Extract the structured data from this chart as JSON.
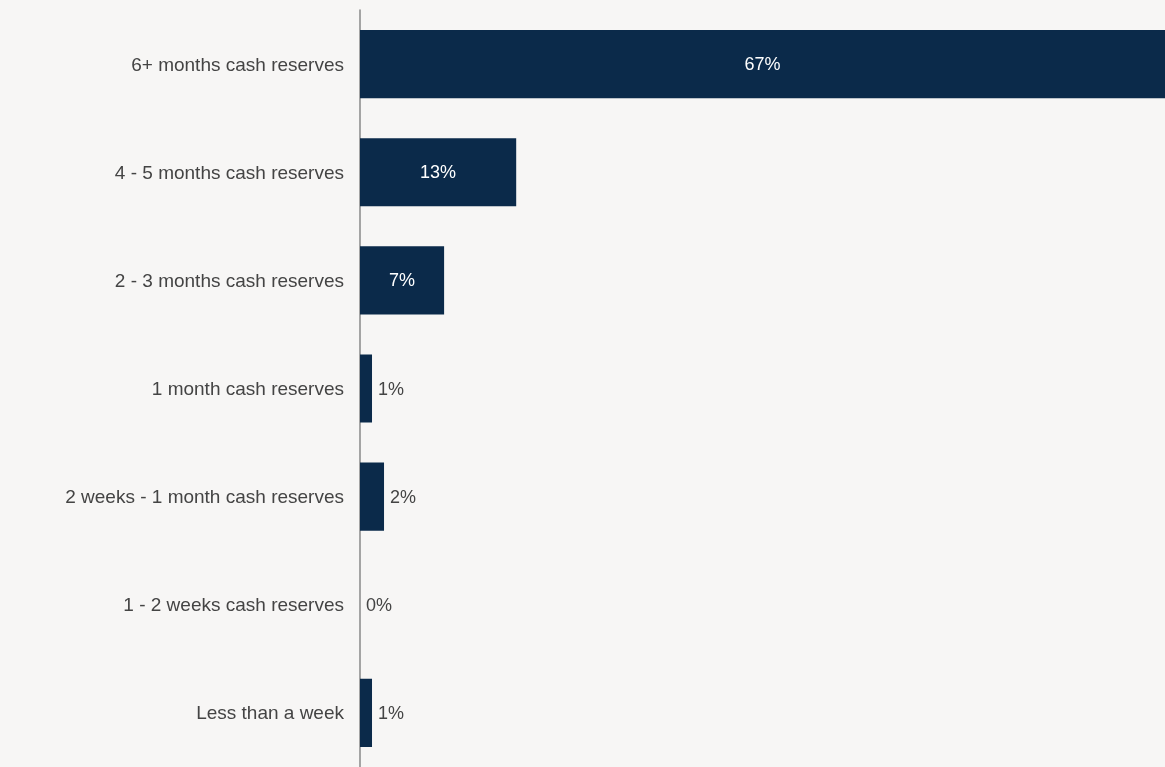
{
  "chart_data": {
    "type": "bar",
    "orientation": "horizontal",
    "categories": [
      "6+ months cash reserves",
      "4 - 5 months cash reserves",
      "2 - 3 months cash reserves",
      "1 month cash reserves",
      "2 weeks - 1 month cash reserves",
      "1 - 2 weeks cash reserves",
      "Less than a week"
    ],
    "values": [
      67,
      13,
      7,
      1,
      2,
      0,
      1
    ],
    "value_labels": [
      "67%",
      "13%",
      "7%",
      "1%",
      "2%",
      "0%",
      "1%"
    ],
    "color": "#0b2a4a"
  }
}
